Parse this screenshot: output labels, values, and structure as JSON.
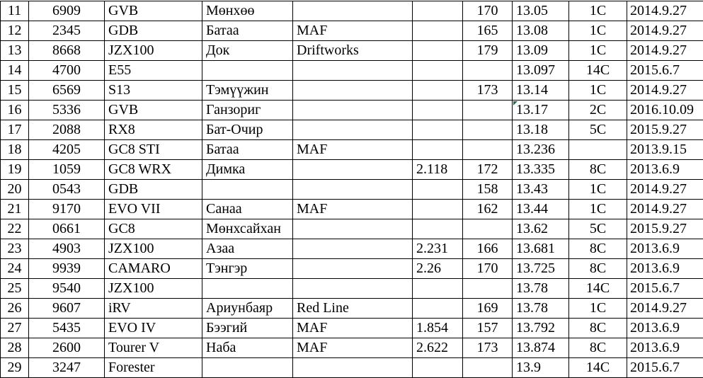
{
  "colors": {
    "background": "#ffffff",
    "grid_line": "#000000",
    "text": "#000000",
    "error_indicator_green": "#1e7145"
  },
  "error_indicator": {
    "row_index": 5,
    "cell_index": 7
  },
  "table": {
    "rows": [
      {
        "cells": [
          "11",
          "6909",
          "GVB",
          "Мөнхөө",
          "",
          "",
          "170",
          "13.05",
          "1C",
          "2014.9.27"
        ]
      },
      {
        "cells": [
          "12",
          "2345",
          "GDB",
          "Батаа",
          "MAF",
          "",
          "165",
          "13.08",
          "1C",
          "2014.9.27"
        ]
      },
      {
        "cells": [
          "13",
          "8668",
          "JZX100",
          "Док",
          "Driftworks",
          "",
          "179",
          "13.09",
          "1C",
          "2014.9.27"
        ]
      },
      {
        "cells": [
          "14",
          "4700",
          "E55",
          "",
          "",
          "",
          "",
          "13.097",
          "14C",
          "2015.6.7"
        ]
      },
      {
        "cells": [
          "15",
          "6569",
          "S13",
          "Тэмүүжин",
          "",
          "",
          "173",
          "13.14",
          "1C",
          "2014.9.27"
        ]
      },
      {
        "cells": [
          "16",
          "5336",
          "GVB",
          "Ганзориг",
          "",
          "",
          "",
          "13.17",
          "2C",
          "2016.10.09"
        ]
      },
      {
        "cells": [
          "17",
          "2088",
          "RX8",
          "Бат-Очир",
          "",
          "",
          "",
          "13.18",
          "5C",
          "2015.9.27"
        ]
      },
      {
        "cells": [
          "18",
          "4205",
          "GC8 STI",
          "Батаа",
          "MAF",
          "",
          "",
          "13.236",
          "",
          "2013.9.15"
        ]
      },
      {
        "cells": [
          "19",
          "1059",
          "GC8 WRX",
          "Димка",
          "",
          "2.118",
          "172",
          "13.335",
          "8C",
          "2013.6.9"
        ]
      },
      {
        "cells": [
          "20",
          "0543",
          "GDB",
          "",
          "",
          "",
          "158",
          "13.43",
          "1C",
          "2014.9.27"
        ]
      },
      {
        "cells": [
          "21",
          "9170",
          "EVO VII",
          "Санаа",
          "MAF",
          "",
          "162",
          "13.44",
          "1C",
          "2014.9.27"
        ]
      },
      {
        "cells": [
          "22",
          "0661",
          "GC8",
          "Мөнхсайхан",
          "",
          "",
          "",
          "13.62",
          "5C",
          "2015.9.27"
        ]
      },
      {
        "cells": [
          "23",
          "4903",
          "JZX100",
          "Азаа",
          "",
          "2.231",
          "166",
          "13.681",
          "8C",
          "2013.6.9"
        ]
      },
      {
        "cells": [
          "24",
          "9939",
          "CAMARO",
          "Тэнгэр",
          "",
          "2.26",
          "170",
          "13.725",
          "8C",
          "2013.6.9"
        ]
      },
      {
        "cells": [
          "25",
          "9540",
          "JZX100",
          "",
          "",
          "",
          "",
          "13.78",
          "14C",
          "2015.6.7"
        ]
      },
      {
        "cells": [
          "26",
          "9607",
          "iRV",
          "Ариунбаяр",
          "Red Line",
          "",
          "169",
          "13.78",
          "1C",
          "2014.9.27"
        ]
      },
      {
        "cells": [
          "27",
          "5435",
          "EVO IV",
          "Бээгий",
          "MAF",
          "1.854",
          "157",
          "13.792",
          "8C",
          "2013.6.9"
        ]
      },
      {
        "cells": [
          "28",
          "2600",
          "Tourer V",
          "Наба",
          "MAF",
          "2.622",
          "173",
          "13.874",
          "8C",
          "2013.6.9"
        ]
      },
      {
        "cells": [
          "29",
          "3247",
          "Forester",
          "",
          "",
          "",
          "",
          "13.9",
          "14C",
          "2015.6.7"
        ]
      }
    ]
  }
}
